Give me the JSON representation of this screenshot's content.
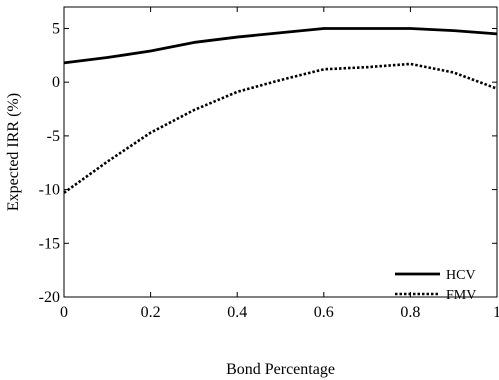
{
  "chart_data": {
    "type": "line",
    "xlabel": "Bond Percentage",
    "ylabel": "Expected IRR (%)",
    "xlim": [
      0,
      1
    ],
    "ylim": [
      -20,
      7
    ],
    "x_ticks": [
      0,
      0.2,
      0.4,
      0.6,
      0.8,
      1
    ],
    "x_tick_labels": [
      "0",
      "0.2",
      "0.4",
      "0.6",
      "0.8",
      "1"
    ],
    "y_ticks": [
      -20,
      -15,
      -10,
      -5,
      0,
      5
    ],
    "y_tick_labels": [
      "-20",
      "-15",
      "-10",
      "-5",
      "0",
      "5"
    ],
    "grid": false,
    "legend_position": "bottom-right",
    "series": [
      {
        "name": "HCV",
        "style": "solid",
        "color": "#000000",
        "x": [
          0,
          0.1,
          0.2,
          0.3,
          0.4,
          0.5,
          0.6,
          0.7,
          0.8,
          0.9,
          1.0
        ],
        "y": [
          1.8,
          2.3,
          2.9,
          3.7,
          4.2,
          4.6,
          5.0,
          5.0,
          5.0,
          4.8,
          4.5
        ]
      },
      {
        "name": "FMV",
        "style": "dotted",
        "color": "#000000",
        "x": [
          0,
          0.1,
          0.2,
          0.3,
          0.4,
          0.5,
          0.6,
          0.7,
          0.8,
          0.9,
          1.0
        ],
        "y": [
          -10.3,
          -7.4,
          -4.7,
          -2.6,
          -0.9,
          0.2,
          1.2,
          1.4,
          1.7,
          0.9,
          -0.6
        ]
      }
    ]
  }
}
